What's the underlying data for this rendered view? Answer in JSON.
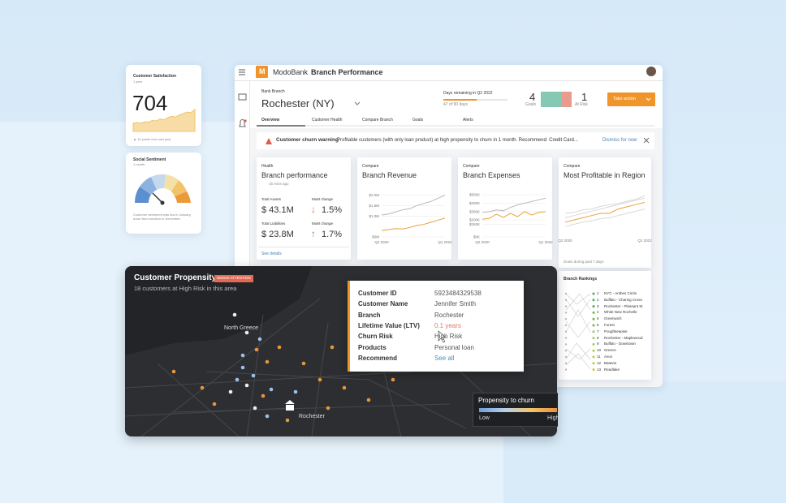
{
  "phone": {
    "satisfaction": {
      "title": "Customer Satisfaction",
      "period": "1 year",
      "score": "704",
      "note": "▲ 14 points from last year",
      "chart": {
        "type": "area",
        "color": "#f1c46a",
        "x": [
          0,
          1,
          2,
          3,
          4,
          5,
          6,
          7,
          8,
          9,
          10,
          11,
          12,
          13,
          14,
          15,
          16
        ],
        "values": [
          3,
          3.2,
          3,
          3.5,
          3.4,
          4,
          3.8,
          4.5,
          4.2,
          5,
          5.5,
          5.2,
          6,
          6.5,
          7,
          6.8,
          8
        ],
        "xlim": [
          0,
          16
        ],
        "ylim": [
          0,
          10
        ]
      }
    },
    "sentiment": {
      "title": "Social Sentiment",
      "period": "1 month",
      "note": "Customer sentiment was low in January, down from medium in December."
    }
  },
  "app": {
    "logo": "M",
    "brand": "ModoBank",
    "title": "Branch Performance",
    "branch_label": "Bank Branch",
    "branch": "Rochester (NY)",
    "days_label": "Days remaining in Q2 2022",
    "days_note": "47 of 90 days",
    "goals": {
      "count": "4",
      "label": "Goals"
    },
    "risk": {
      "count": "1",
      "label": "At Risk"
    },
    "action": "Take action",
    "tabs": [
      "Overview",
      "Customer Health",
      "Compare Branch",
      "Goals",
      "Alerts"
    ],
    "warning": {
      "title": "Customer churn warning",
      "text": "Profitable customers (with only loan product) at high propensity to churn in 1 month. Recommend: Credit Card...",
      "dismiss": "Dismiss for now"
    }
  },
  "health": {
    "label": "Health",
    "title": "Branch performance",
    "updated": "15 mins ago",
    "assets_label": "Total Assets",
    "assets": "$ 43.1M",
    "assets_change_label": "MoM change",
    "assets_change": "1.5%",
    "liab_label": "Total Liabilities",
    "liab": "$ 23.8M",
    "liab_change_label": "MoM change",
    "liab_change": "1.7%",
    "link": "See details"
  },
  "revenue": {
    "label": "Compare",
    "title": "Branch Revenue",
    "type": "line",
    "x": [
      0,
      1,
      2,
      3,
      4,
      5,
      6,
      7,
      8,
      9
    ],
    "xlim": [
      0,
      9
    ],
    "xticks": [
      {
        "value": 0,
        "label": "Q2 2020"
      },
      {
        "value": 9,
        "label": "Q1 2022"
      }
    ],
    "ylim": [
      0,
      2.1
    ],
    "yticks": [
      {
        "value": 2.0,
        "label": "$2.0M"
      },
      {
        "value": 1.5,
        "label": "$1.5M"
      },
      {
        "value": 1.0,
        "label": "$1.0M"
      },
      {
        "value": 0,
        "label": "$0M"
      }
    ],
    "series": [
      {
        "color": "#b9b9b9",
        "values": [
          1.05,
          1.1,
          1.2,
          1.3,
          1.35,
          1.5,
          1.6,
          1.7,
          1.85,
          2.0
        ]
      },
      {
        "color": "#e8a13c",
        "values": [
          0.3,
          0.35,
          0.4,
          0.38,
          0.45,
          0.55,
          0.6,
          0.7,
          0.8,
          0.9
        ]
      }
    ]
  },
  "expenses": {
    "label": "Compare",
    "title": "Branch Expenses",
    "type": "line",
    "x": [
      0,
      1,
      2,
      3,
      4,
      5,
      6,
      7,
      8,
      9
    ],
    "xlim": [
      0,
      9
    ],
    "xticks": [
      {
        "value": 0,
        "label": "Q2 2020"
      },
      {
        "value": 9,
        "label": "Q1 2022"
      }
    ],
    "ylim": [
      0,
      520
    ],
    "yticks": [
      {
        "value": 500,
        "label": "$500K"
      },
      {
        "value": 400,
        "label": "$400K"
      },
      {
        "value": 300,
        "label": "$300K"
      },
      {
        "value": 200,
        "label": "$200K"
      },
      {
        "value": 150,
        "label": "$150K"
      },
      {
        "value": 0,
        "label": "$0K"
      }
    ],
    "series": [
      {
        "color": "#b9b9b9",
        "values": [
          290,
          300,
          320,
          310,
          350,
          380,
          400,
          420,
          440,
          460
        ]
      },
      {
        "color": "#e8a13c",
        "values": [
          210,
          220,
          270,
          230,
          280,
          240,
          300,
          260,
          290,
          300
        ]
      }
    ]
  },
  "profitable": {
    "label": "Compare",
    "title": "Most Profitable in Region",
    "type": "line",
    "note": "Down during past 7 days",
    "x": [
      0,
      1,
      2,
      3,
      4,
      5,
      6,
      7,
      8,
      9
    ],
    "xlim": [
      0,
      9
    ],
    "xticks": [
      {
        "value": 0,
        "label": "Q2 2020"
      },
      {
        "value": 9,
        "label": "Q1 2022"
      }
    ],
    "ylim": [
      0,
      10
    ],
    "series": [
      {
        "color": "#d8d8d8",
        "values": [
          4,
          4.5,
          5,
          5.5,
          6,
          6.5,
          7,
          7.5,
          8,
          8.5
        ]
      },
      {
        "color": "#d8d8d8",
        "values": [
          2,
          2.5,
          3,
          3.3,
          3.8,
          4,
          4.5,
          5,
          5.5,
          6
        ]
      },
      {
        "color": "#d8d8d8",
        "values": [
          5,
          5.2,
          5.8,
          6,
          6.6,
          7,
          7.2,
          7.8,
          8.2,
          9
        ]
      },
      {
        "color": "#e8a13c",
        "values": [
          3,
          3.5,
          4,
          4.5,
          5,
          5,
          6,
          6.5,
          7,
          7.5
        ]
      }
    ]
  },
  "rankings": {
    "title": "Branch Rankings",
    "items": [
      {
        "rank": 1,
        "name": "NYC - Anthes Circle"
      },
      {
        "rank": 2,
        "name": "Buffalo - Charing Cross"
      },
      {
        "rank": 3,
        "name": "Rochester - Pleasant St"
      },
      {
        "rank": 4,
        "name": "White New Rochelle"
      },
      {
        "rank": 5,
        "name": "Greenwich"
      },
      {
        "rank": 6,
        "name": "Forest"
      },
      {
        "rank": 7,
        "name": "Poughkeepsie"
      },
      {
        "rank": 8,
        "name": "Rochester - Maplewood"
      },
      {
        "rank": 9,
        "name": "Buffalo - Downtown"
      },
      {
        "rank": 10,
        "name": "Greece"
      },
      {
        "rank": 11,
        "name": "Avon"
      },
      {
        "rank": 12,
        "name": "Batavia"
      },
      {
        "rank": 13,
        "name": "Readlake"
      }
    ]
  },
  "map": {
    "title": "Customer Propensity",
    "badge": "NEEDS ATTENTION",
    "subtitle": "18 customers at High Risk in this area",
    "places": [
      "North Greece",
      "Rochester"
    ],
    "legend": {
      "title": "Propensity to churn",
      "low": "Low",
      "high": "High"
    }
  },
  "tooltip": {
    "rows": [
      {
        "label": "Customer ID",
        "value": "5923484329538"
      },
      {
        "label": "Customer Name",
        "value": "Jennifer Smith"
      },
      {
        "label": "Branch",
        "value": "Rochester"
      },
      {
        "label": "Lifetime Value (LTV)",
        "value": "0.1 years"
      },
      {
        "label": "Churn Risk",
        "value": "High Risk"
      },
      {
        "label": "Products",
        "value": "Personal loan"
      },
      {
        "label": "Recommend",
        "value": "See all"
      }
    ]
  }
}
